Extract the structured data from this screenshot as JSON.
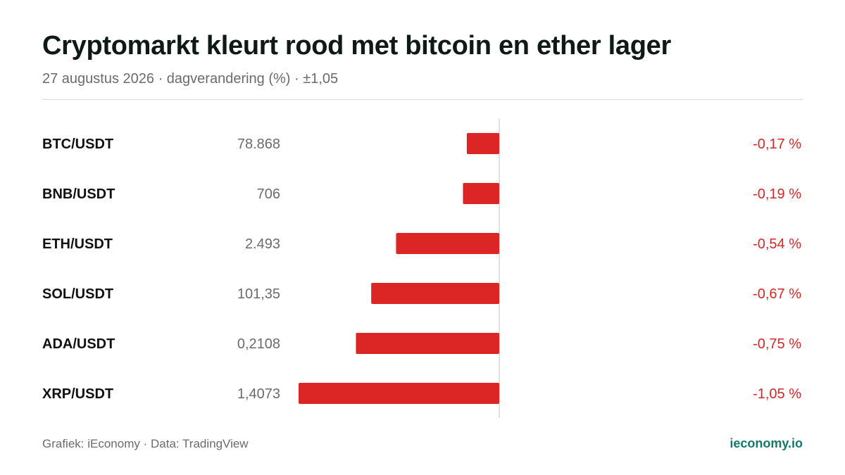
{
  "header": {
    "title": "Cryptomarkt kleurt rood met bitcoin en ether lager",
    "subtitle": "27 augustus 2026 · dagverandering (%) · ±1,05"
  },
  "footer": {
    "source": "Grafiek: iEconomy · Data: TradingView",
    "brand": "ieconomy.io"
  },
  "colors": {
    "bar_negative": "#dc2626",
    "label_negative": "#dc2626",
    "brand": "#137a6a"
  },
  "chart_data": {
    "type": "bar",
    "orientation": "horizontal",
    "categories": [
      "BTC/USDT",
      "BNB/USDT",
      "ETH/USDT",
      "SOL/USDT",
      "ADA/USDT",
      "XRP/USDT"
    ],
    "prices": [
      "78.868",
      "706",
      "2.493",
      "101,35",
      "0,2108",
      "1,4073"
    ],
    "values": [
      -0.17,
      -0.19,
      -0.54,
      -0.67,
      -0.75,
      -1.05
    ],
    "value_labels": [
      "-0,17 %",
      "-0,19 %",
      "-0,54 %",
      "-0,67 %",
      "-0,75 %",
      "-1,05 %"
    ],
    "xlim": [
      -1.05,
      1.05
    ],
    "grid": false
  }
}
